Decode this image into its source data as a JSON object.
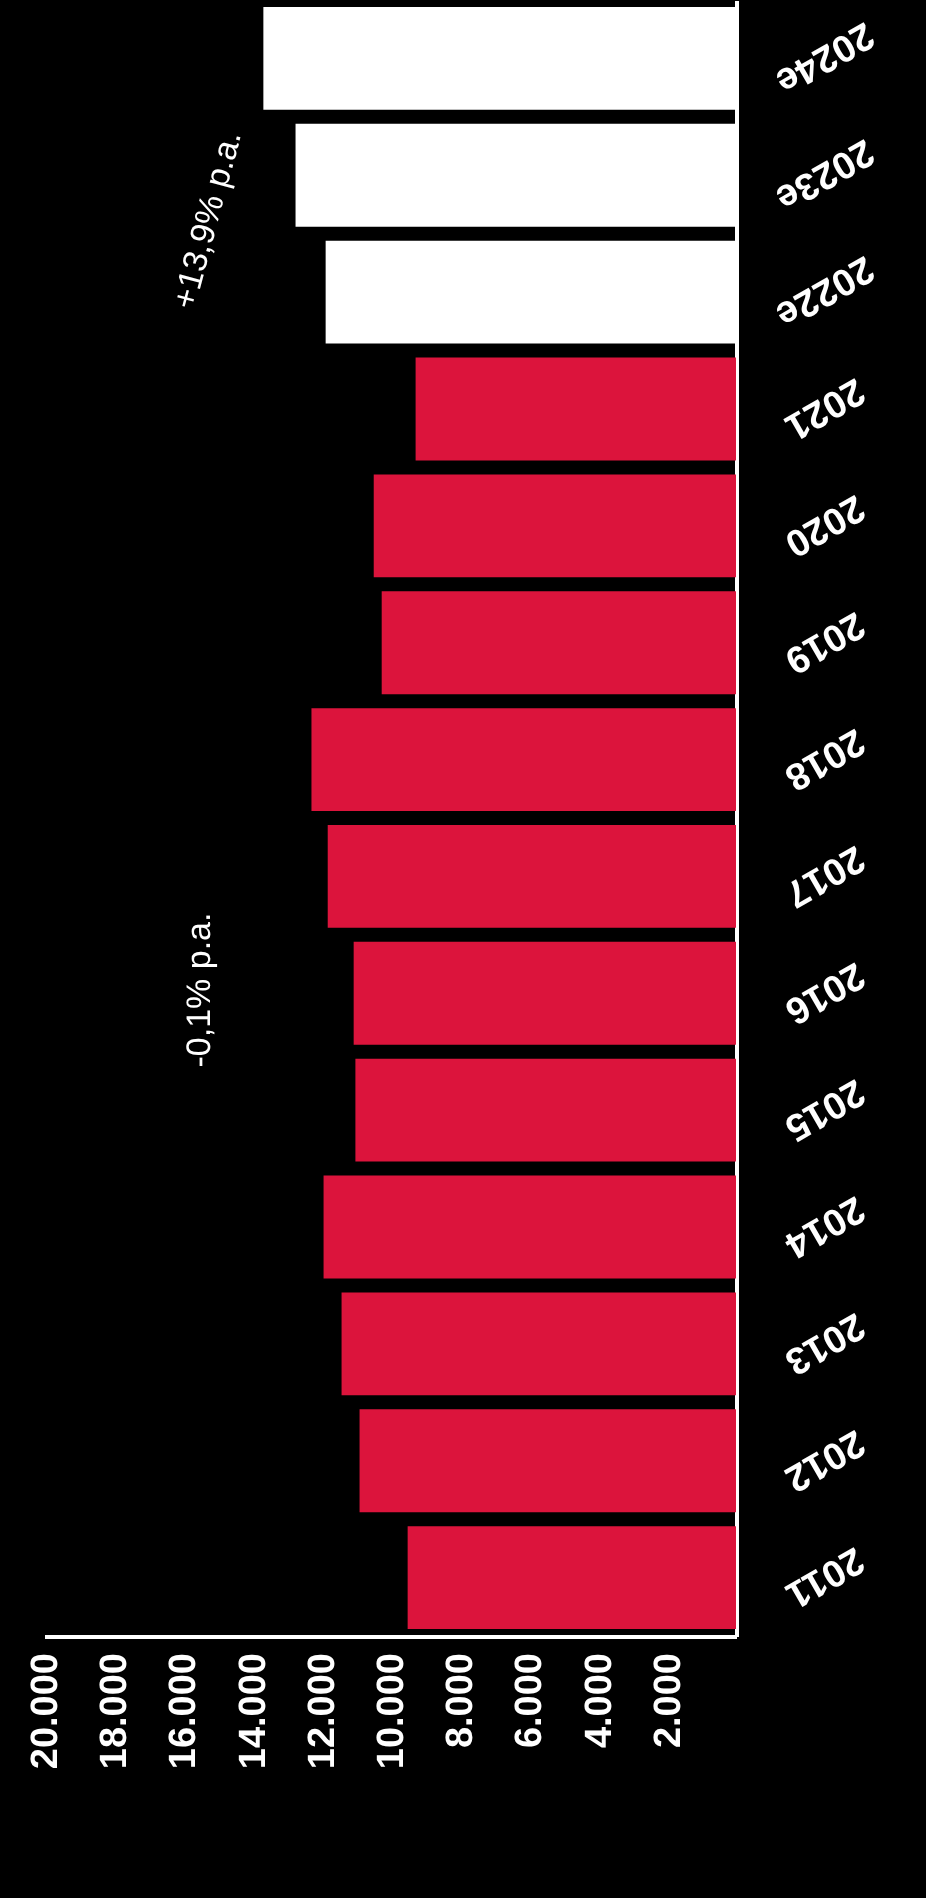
{
  "chart_data": {
    "type": "bar",
    "orientation": "horizontal",
    "categories": [
      "2024e",
      "2023e",
      "2022e",
      "2021",
      "2020",
      "2019",
      "2018",
      "2017",
      "2016",
      "2015",
      "2014",
      "2013",
      "2012",
      "2011"
    ],
    "values": [
      13660,
      12730,
      11860,
      9260,
      10470,
      10240,
      12270,
      11800,
      11050,
      11000,
      11920,
      11400,
      10880,
      9490
    ],
    "colors": [
      "#ffffff",
      "#ffffff",
      "#ffffff",
      "#dc143c",
      "#dc143c",
      "#dc143c",
      "#dc143c",
      "#dc143c",
      "#dc143c",
      "#dc143c",
      "#dc143c",
      "#dc143c",
      "#dc143c",
      "#dc143c"
    ],
    "xlim": [
      20000,
      0
    ],
    "xticks": [
      {
        "value": 2000,
        "label": "2.000"
      },
      {
        "value": 4000,
        "label": "4.000"
      },
      {
        "value": 6000,
        "label": "6.000"
      },
      {
        "value": 8000,
        "label": "8.000"
      },
      {
        "value": 10000,
        "label": "10.000"
      },
      {
        "value": 12000,
        "label": "12.000"
      },
      {
        "value": 14000,
        "label": "14.000"
      },
      {
        "value": 16000,
        "label": "16.000"
      },
      {
        "value": 18000,
        "label": "18.000"
      },
      {
        "value": 20000,
        "label": "20.000"
      }
    ],
    "annotations": [
      "-0,1% p.a.",
      "+13,9% p.a."
    ],
    "grid": false,
    "legend": false
  }
}
